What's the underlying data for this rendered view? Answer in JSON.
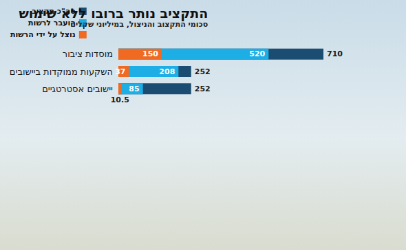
{
  "chart_data": {
    "type": "bar",
    "title": "התקציב נותר ברובו ללא שימוש",
    "subtitle": "סכומי התקצוב והניצול, במיליוני שקלים",
    "orientation": "horizontal",
    "categories": [
      "מוסדות ציבור",
      "השקעות ממוקדות ביישובים",
      "יישובים אסטרטגיים"
    ],
    "series": [
      {
        "name": "סה\"כ תקציב",
        "color": "#1b4d72",
        "values": [
          710,
          252,
          252
        ]
      },
      {
        "name": "הועבר לרשות",
        "color": "#1eaee6",
        "values": [
          520,
          208,
          85
        ]
      },
      {
        "name": "נוצל על ידי הרשות",
        "color": "#f06a22",
        "values": [
          150,
          37,
          10.5
        ]
      }
    ],
    "xlim": [
      0,
      710
    ],
    "tick_labels": "y",
    "data_labels": true,
    "legend": "upper left",
    "grid": false
  }
}
